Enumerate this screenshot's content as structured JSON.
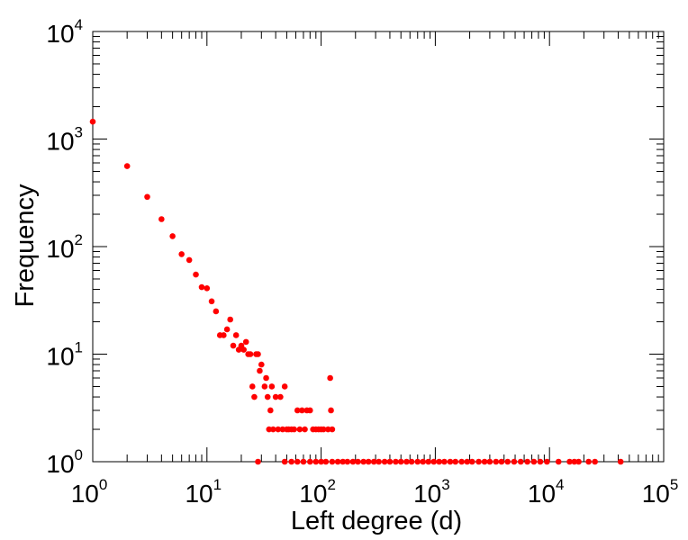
{
  "chart_data": {
    "type": "scatter",
    "title": "",
    "xlabel": "Left degree (d)",
    "ylabel": "Frequency",
    "xscale": "log",
    "yscale": "log",
    "xlim": [
      1,
      100000
    ],
    "ylim": [
      1,
      10000
    ],
    "x_ticks": [
      {
        "base": "10",
        "exp": "0"
      },
      {
        "base": "10",
        "exp": "1"
      },
      {
        "base": "10",
        "exp": "2"
      },
      {
        "base": "10",
        "exp": "3"
      },
      {
        "base": "10",
        "exp": "4"
      },
      {
        "base": "10",
        "exp": "5"
      }
    ],
    "y_ticks": [
      {
        "base": "10",
        "exp": "0"
      },
      {
        "base": "10",
        "exp": "1"
      },
      {
        "base": "10",
        "exp": "2"
      },
      {
        "base": "10",
        "exp": "3"
      },
      {
        "base": "10",
        "exp": "4"
      }
    ],
    "grid": false,
    "legend": "none",
    "marker_color": "#ff0000",
    "series": [
      {
        "points": [
          [
            1,
            1450
          ],
          [
            2,
            560
          ],
          [
            3,
            290
          ],
          [
            4,
            180
          ],
          [
            5,
            125
          ],
          [
            6,
            85
          ],
          [
            7,
            75
          ],
          [
            8,
            55
          ],
          [
            9,
            42
          ],
          [
            10,
            41
          ],
          [
            11,
            31
          ],
          [
            12,
            25
          ],
          [
            13,
            15
          ],
          [
            14,
            15
          ],
          [
            15,
            17
          ],
          [
            16,
            21
          ],
          [
            17,
            12
          ],
          [
            18,
            15
          ],
          [
            19,
            11
          ],
          [
            20,
            12
          ],
          [
            21,
            11
          ],
          [
            22,
            13
          ],
          [
            23,
            10
          ],
          [
            24,
            10
          ],
          [
            25,
            5
          ],
          [
            26,
            4
          ],
          [
            27,
            10
          ],
          [
            28,
            10
          ],
          [
            29,
            7
          ],
          [
            30,
            8
          ],
          [
            32,
            5
          ],
          [
            33,
            6
          ],
          [
            34,
            4
          ],
          [
            35,
            2
          ],
          [
            36,
            3
          ],
          [
            37,
            5
          ],
          [
            38,
            2
          ],
          [
            40,
            4
          ],
          [
            42,
            2
          ],
          [
            44,
            4
          ],
          [
            46,
            2
          ],
          [
            48,
            5
          ],
          [
            50,
            2
          ],
          [
            52,
            2
          ],
          [
            55,
            2
          ],
          [
            58,
            2
          ],
          [
            62,
            3
          ],
          [
            65,
            2
          ],
          [
            68,
            3
          ],
          [
            72,
            2
          ],
          [
            75,
            3
          ],
          [
            80,
            3
          ],
          [
            85,
            2
          ],
          [
            90,
            2
          ],
          [
            95,
            2
          ],
          [
            100,
            2
          ],
          [
            105,
            2
          ],
          [
            115,
            2
          ],
          [
            120,
            6
          ],
          [
            122,
            3
          ],
          [
            125,
            2
          ],
          [
            28,
            1
          ],
          [
            48,
            1
          ],
          [
            55,
            1
          ],
          [
            62,
            1
          ],
          [
            70,
            1
          ],
          [
            80,
            1
          ],
          [
            90,
            1
          ],
          [
            100,
            1
          ],
          [
            110,
            1
          ],
          [
            125,
            1
          ],
          [
            140,
            1
          ],
          [
            155,
            1
          ],
          [
            170,
            1
          ],
          [
            190,
            1
          ],
          [
            210,
            1
          ],
          [
            235,
            1
          ],
          [
            260,
            1
          ],
          [
            290,
            1
          ],
          [
            320,
            1
          ],
          [
            360,
            1
          ],
          [
            400,
            1
          ],
          [
            450,
            1
          ],
          [
            500,
            1
          ],
          [
            560,
            1
          ],
          [
            620,
            1
          ],
          [
            700,
            1
          ],
          [
            780,
            1
          ],
          [
            870,
            1
          ],
          [
            970,
            1
          ],
          [
            1080,
            1
          ],
          [
            1200,
            1
          ],
          [
            1350,
            1
          ],
          [
            1500,
            1
          ],
          [
            1700,
            1
          ],
          [
            1900,
            1
          ],
          [
            2100,
            1
          ],
          [
            2400,
            1
          ],
          [
            2700,
            1
          ],
          [
            3000,
            1
          ],
          [
            3400,
            1
          ],
          [
            3800,
            1
          ],
          [
            4300,
            1
          ],
          [
            4900,
            1
          ],
          [
            5600,
            1
          ],
          [
            6400,
            1
          ],
          [
            7300,
            1
          ],
          [
            8300,
            1
          ],
          [
            9500,
            1
          ],
          [
            12000,
            1
          ],
          [
            15000,
            1
          ],
          [
            16500,
            1
          ],
          [
            18000,
            1
          ],
          [
            22000,
            1
          ],
          [
            25000,
            1
          ],
          [
            42000,
            1
          ]
        ]
      }
    ]
  }
}
